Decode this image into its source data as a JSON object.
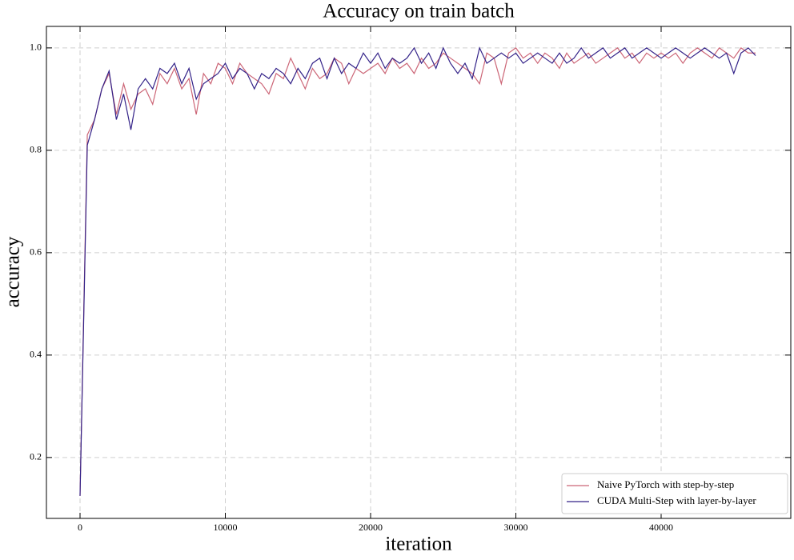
{
  "chart_data": {
    "type": "line",
    "title": "Accuracy on train batch",
    "x_label": "iteration",
    "y_label": "accuracy",
    "x": [
      0,
      500,
      1000,
      1500,
      2000,
      2500,
      3000,
      3500,
      4000,
      4500,
      5000,
      5500,
      6000,
      6500,
      7000,
      7500,
      8000,
      8500,
      9000,
      9500,
      10000,
      10500,
      11000,
      11500,
      12000,
      12500,
      13000,
      13500,
      14000,
      14500,
      15000,
      15500,
      16000,
      16500,
      17000,
      17500,
      18000,
      18500,
      19000,
      19500,
      20000,
      20500,
      21000,
      21500,
      22000,
      22500,
      23000,
      23500,
      24000,
      24500,
      25000,
      25500,
      26000,
      26500,
      27000,
      27500,
      28000,
      28500,
      29000,
      29500,
      30000,
      30500,
      31000,
      31500,
      32000,
      32500,
      33000,
      33500,
      34000,
      34500,
      35000,
      35500,
      36000,
      36500,
      37000,
      37500,
      38000,
      38500,
      39000,
      39500,
      40000,
      40500,
      41000,
      41500,
      42000,
      42500,
      43000,
      43500,
      44000,
      44500,
      45000,
      45500,
      46000,
      46500
    ],
    "series": [
      {
        "name": "Naive PyTorch with step-by-step",
        "color": "#cc6677",
        "values": [
          0.125,
          0.83,
          0.86,
          0.92,
          0.95,
          0.87,
          0.93,
          0.88,
          0.91,
          0.92,
          0.89,
          0.95,
          0.93,
          0.96,
          0.92,
          0.94,
          0.87,
          0.95,
          0.93,
          0.97,
          0.96,
          0.93,
          0.97,
          0.95,
          0.94,
          0.93,
          0.91,
          0.95,
          0.94,
          0.98,
          0.95,
          0.92,
          0.96,
          0.94,
          0.95,
          0.98,
          0.97,
          0.93,
          0.96,
          0.95,
          0.96,
          0.97,
          0.95,
          0.98,
          0.96,
          0.97,
          0.95,
          0.98,
          0.96,
          0.97,
          0.99,
          0.98,
          0.97,
          0.96,
          0.95,
          0.93,
          0.99,
          0.98,
          0.93,
          0.99,
          1.0,
          0.98,
          0.99,
          0.97,
          0.99,
          0.98,
          0.96,
          0.99,
          0.97,
          0.98,
          0.99,
          0.97,
          0.98,
          0.99,
          1.0,
          0.98,
          0.99,
          0.97,
          0.99,
          0.98,
          0.99,
          0.98,
          0.99,
          0.97,
          0.99,
          1.0,
          0.99,
          0.98,
          1.0,
          0.99,
          0.98,
          1.0,
          0.99,
          0.99
        ]
      },
      {
        "name": "CUDA Multi-Step with layer-by-layer",
        "color": "#332288",
        "values": [
          0.125,
          0.81,
          0.86,
          0.92,
          0.955,
          0.86,
          0.91,
          0.84,
          0.92,
          0.94,
          0.92,
          0.96,
          0.95,
          0.97,
          0.93,
          0.96,
          0.9,
          0.93,
          0.94,
          0.95,
          0.97,
          0.94,
          0.96,
          0.95,
          0.92,
          0.95,
          0.94,
          0.96,
          0.95,
          0.93,
          0.96,
          0.94,
          0.97,
          0.98,
          0.94,
          0.98,
          0.95,
          0.97,
          0.96,
          0.99,
          0.97,
          0.99,
          0.96,
          0.98,
          0.97,
          0.98,
          1.0,
          0.97,
          0.99,
          0.96,
          1.0,
          0.97,
          0.95,
          0.97,
          0.94,
          1.0,
          0.97,
          0.98,
          0.99,
          0.98,
          0.99,
          0.97,
          0.98,
          0.99,
          0.98,
          0.97,
          0.99,
          0.97,
          0.98,
          1.0,
          0.98,
          0.99,
          1.0,
          0.98,
          0.99,
          1.0,
          0.98,
          0.99,
          1.0,
          0.99,
          0.98,
          0.99,
          1.0,
          0.99,
          0.98,
          0.99,
          1.0,
          0.99,
          0.98,
          0.99,
          0.95,
          0.99,
          1.0,
          0.985
        ]
      }
    ],
    "xlim": [
      -2314,
      48925
    ],
    "ylim": [
      0.081,
      1.042
    ],
    "xticks": [
      0,
      10000,
      20000,
      30000,
      40000
    ],
    "yticks": [
      0.2,
      0.4,
      0.6,
      0.8,
      {
        "value": 1,
        "label": "1.0"
      }
    ],
    "grid": true,
    "legend": "lower right"
  }
}
